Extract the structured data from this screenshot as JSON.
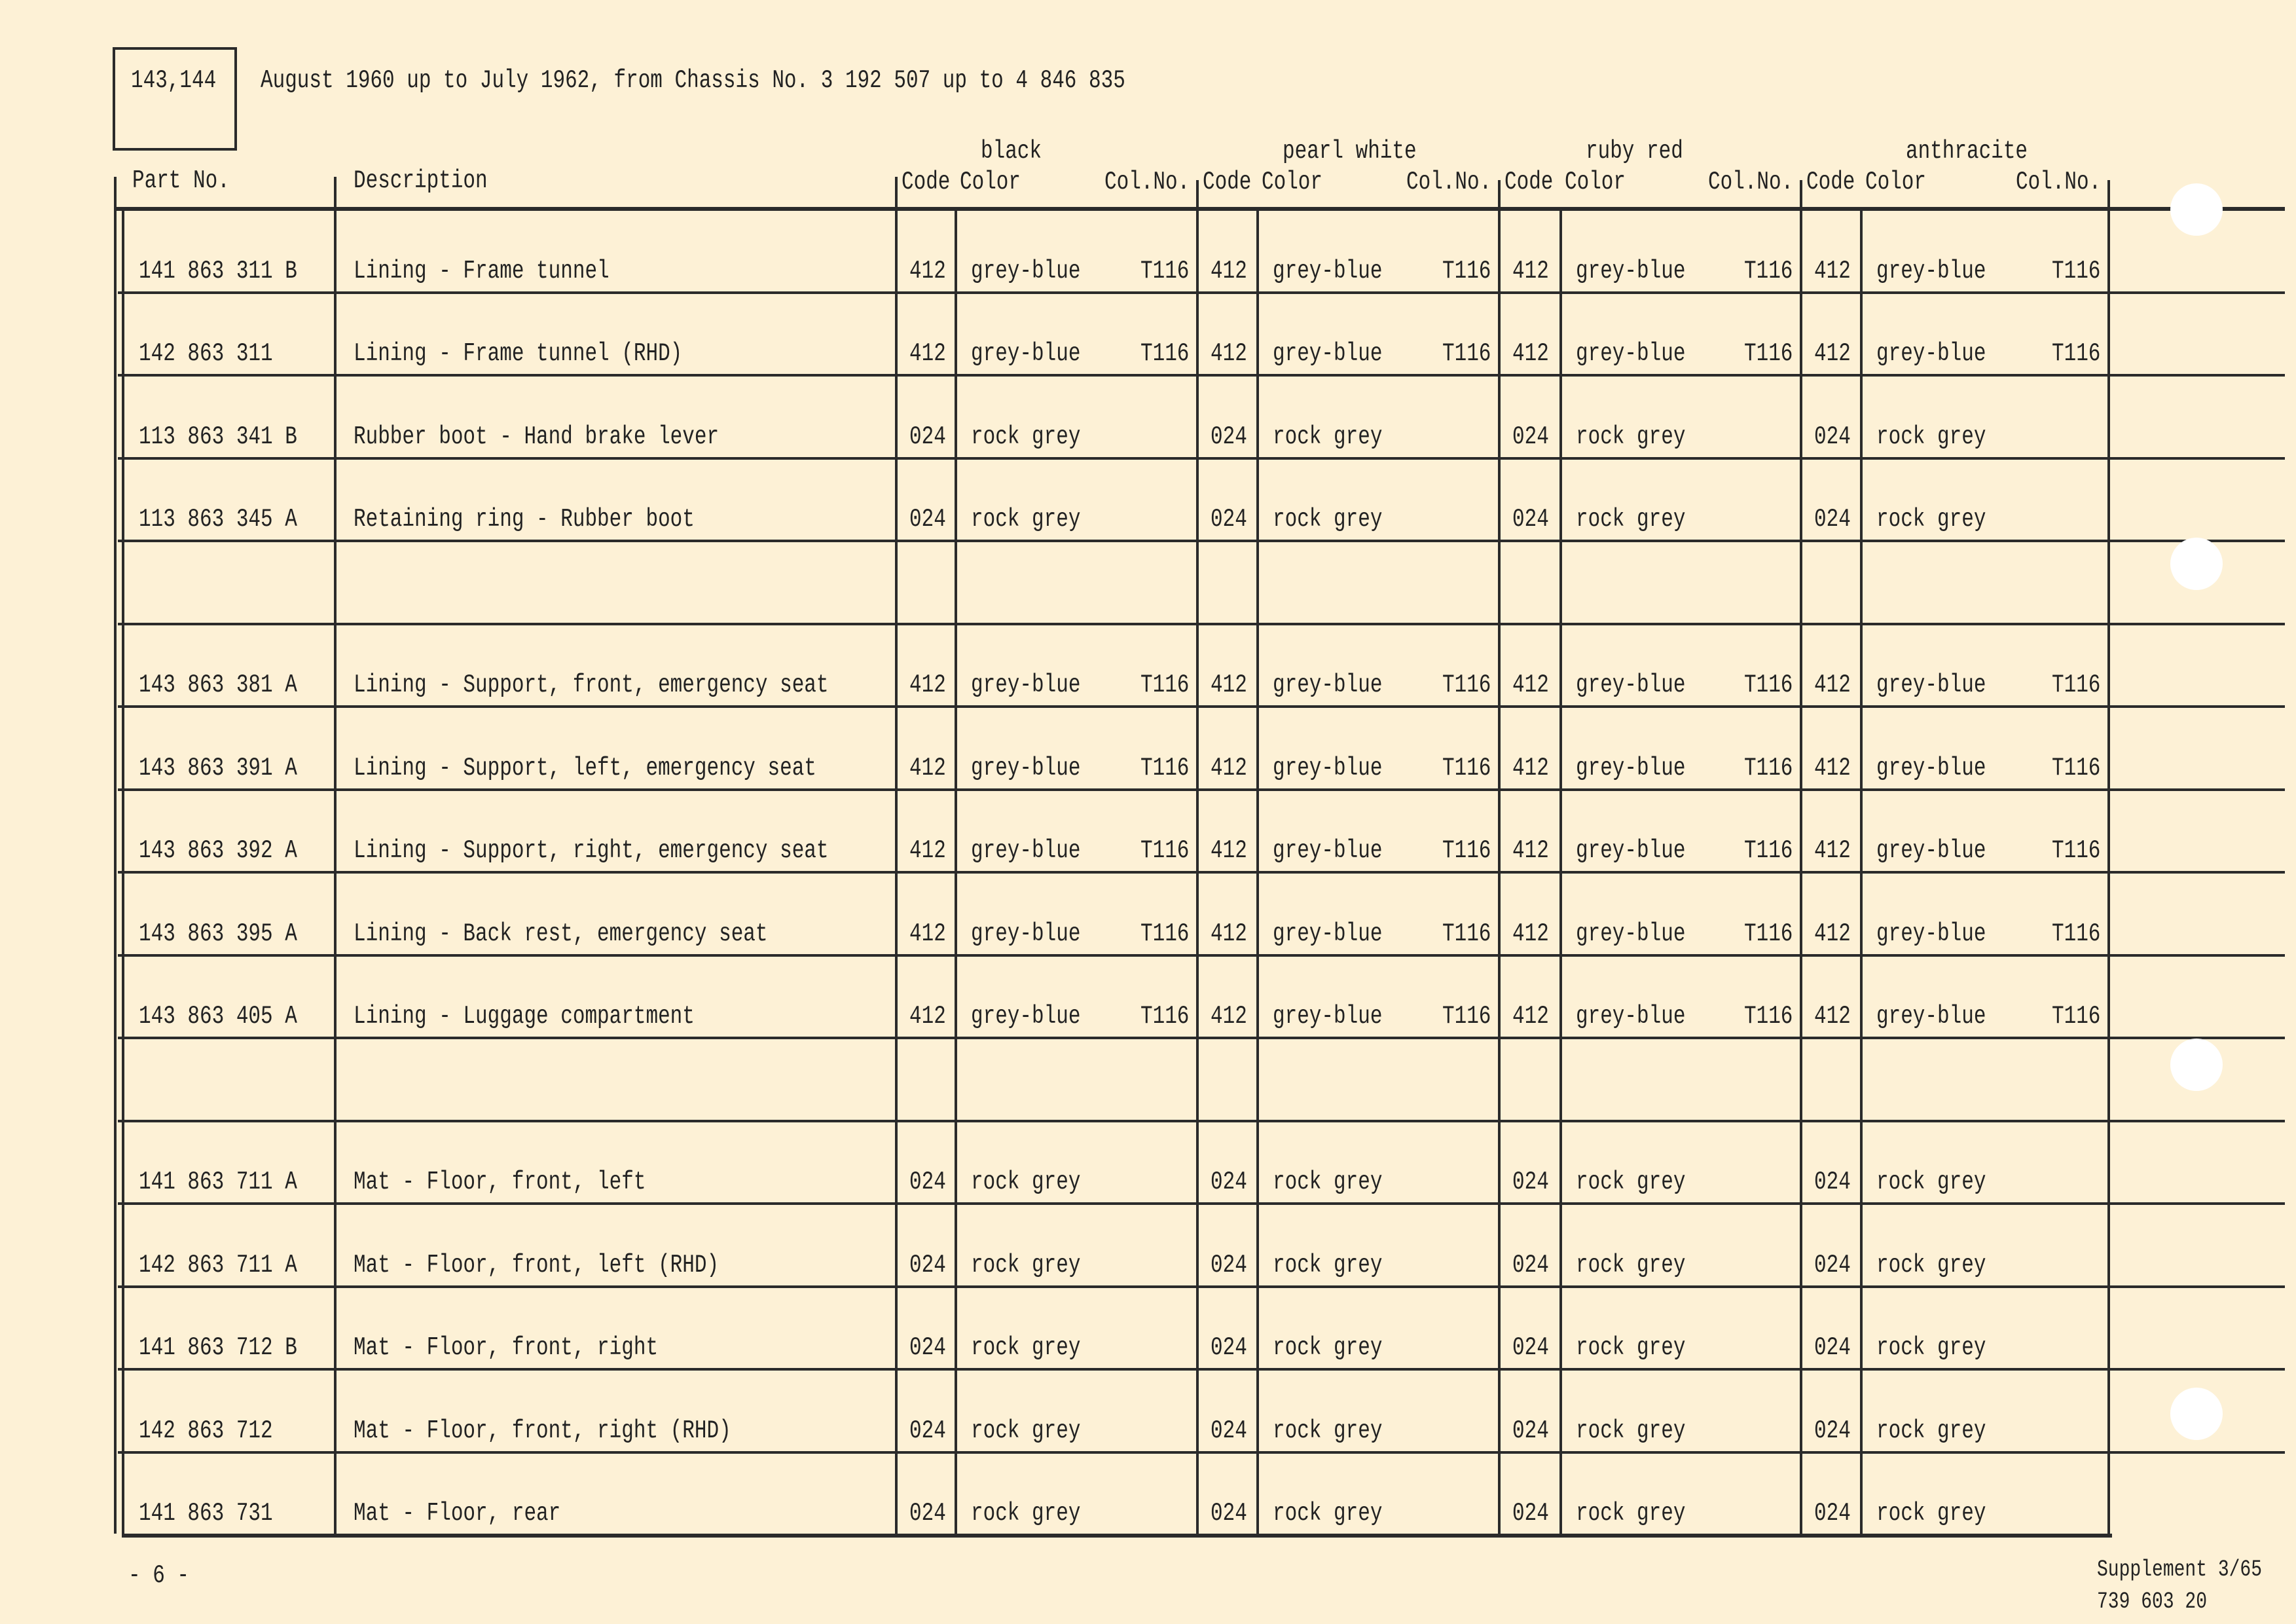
{
  "header": {
    "model_box": "143,144",
    "title": "August 1960 up to July 1962, from Chassis No. 3 192 507 up to 4 846 835"
  },
  "columns": {
    "part_no": "Part No.",
    "description": "Description",
    "code": "Code",
    "color": "Color",
    "col_no": "Col.No.",
    "groups": [
      "black",
      "pearl white",
      "ruby red",
      "anthracite"
    ]
  },
  "rows": [
    {
      "part": "141 863 311 B",
      "desc": "Lining - Frame tunnel",
      "code": "412",
      "color": "grey-blue",
      "colno": "T116"
    },
    {
      "part": "142 863 311",
      "desc": "Lining - Frame tunnel (RHD)",
      "code": "412",
      "color": "grey-blue",
      "colno": "T116"
    },
    {
      "part": "113 863 341 B",
      "desc": "Rubber boot - Hand brake lever",
      "code": "024",
      "color": "rock grey",
      "colno": ""
    },
    {
      "part": "113 863 345 A",
      "desc": "Retaining ring - Rubber boot",
      "code": "024",
      "color": "rock grey",
      "colno": ""
    },
    {
      "part": "",
      "desc": "",
      "code": "",
      "color": "",
      "colno": ""
    },
    {
      "part": "143 863 381 A",
      "desc": "Lining - Support, front, emergency seat",
      "code": "412",
      "color": "grey-blue",
      "colno": "T116"
    },
    {
      "part": "143 863 391 A",
      "desc": "Lining - Support, left, emergency seat",
      "code": "412",
      "color": "grey-blue",
      "colno": "T116"
    },
    {
      "part": "143 863 392 A",
      "desc": "Lining - Support, right, emergency seat",
      "code": "412",
      "color": "grey-blue",
      "colno": "T116"
    },
    {
      "part": "143 863 395 A",
      "desc": "Lining - Back rest, emergency seat",
      "code": "412",
      "color": "grey-blue",
      "colno": "T116"
    },
    {
      "part": "143 863 405 A",
      "desc": "Lining - Luggage compartment",
      "code": "412",
      "color": "grey-blue",
      "colno": "T116"
    },
    {
      "part": "",
      "desc": "",
      "code": "",
      "color": "",
      "colno": ""
    },
    {
      "part": "141 863 711 A",
      "desc": "Mat - Floor, front, left",
      "code": "024",
      "color": "rock grey",
      "colno": ""
    },
    {
      "part": "142 863 711 A",
      "desc": "Mat - Floor, front, left (RHD)",
      "code": "024",
      "color": "rock grey",
      "colno": ""
    },
    {
      "part": "141 863 712 B",
      "desc": "Mat - Floor, front, right",
      "code": "024",
      "color": "rock grey",
      "colno": ""
    },
    {
      "part": "142 863 712",
      "desc": "Mat - Floor, front, right (RHD)",
      "code": "024",
      "color": "rock grey",
      "colno": ""
    },
    {
      "part": "141 863 731",
      "desc": "Mat - Floor, rear",
      "code": "024",
      "color": "rock grey",
      "colno": ""
    }
  ],
  "footer": {
    "page": "- 6 -",
    "supplement": "Supplement 3/65",
    "doc_no": "739 603 20"
  }
}
